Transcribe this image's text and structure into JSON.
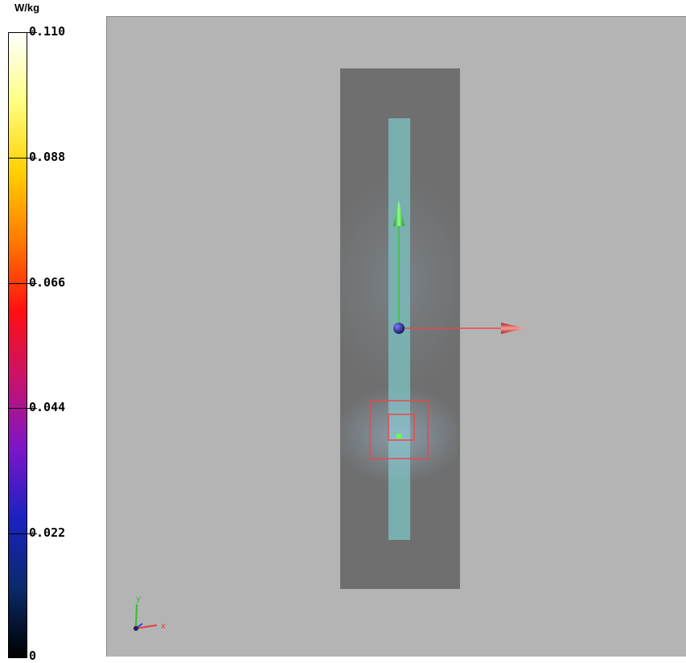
{
  "legend": {
    "unit": "W/kg",
    "ticks": [
      {
        "label": "0.110",
        "value": 0.11
      },
      {
        "label": "0.088",
        "value": 0.088
      },
      {
        "label": "0.066",
        "value": 0.066
      },
      {
        "label": "0.044",
        "value": 0.044
      },
      {
        "label": "0.022",
        "value": 0.022
      },
      {
        "label": "0",
        "value": 0
      }
    ],
    "gradient_colors": [
      "#000000",
      "#0a2a6a",
      "#1a22c0",
      "#7a16c8",
      "#c8126e",
      "#ff1010",
      "#ff7a00",
      "#ffd000",
      "#ffff80",
      "#ffffff"
    ]
  },
  "viewport": {
    "background_color": "#b4b4b4",
    "phantom_color": "#6f6f6f",
    "antenna_color": "#7ab6b6",
    "arrows": [
      {
        "name": "y-axis-arrow",
        "color": "#3ec23e"
      },
      {
        "name": "x-axis-arrow",
        "color": "#e84848"
      }
    ],
    "marker_color": "#e84848",
    "peak_point_color": "#6cff4a",
    "triad": {
      "y_label": "y",
      "x_label": "x"
    }
  }
}
